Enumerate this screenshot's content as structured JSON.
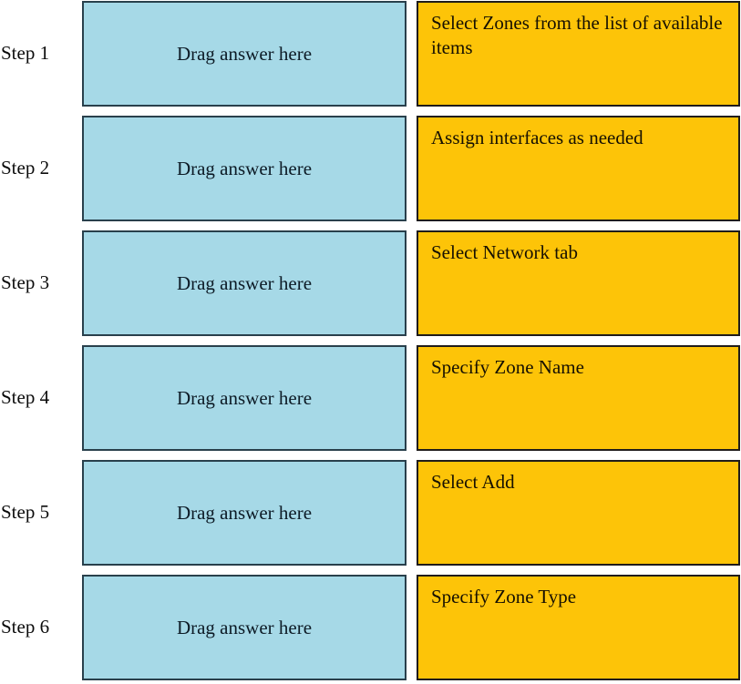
{
  "colors": {
    "drop_bg": "#a6d9e7",
    "drop_border": "#29404c",
    "answer_bg": "#fdc408",
    "answer_border": "#1f1c1b",
    "text": "#0b0b0b",
    "page_bg": "#ffffff"
  },
  "rows": [
    {
      "step": "Step 1",
      "drop_label": "Drag answer here",
      "answer": "Select Zones from the list of available items"
    },
    {
      "step": "Step 2",
      "drop_label": "Drag answer here",
      "answer": "Assign interfaces as needed"
    },
    {
      "step": "Step 3",
      "drop_label": "Drag answer here",
      "answer": "Select Network tab"
    },
    {
      "step": "Step 4",
      "drop_label": "Drag answer here",
      "answer": "Specify Zone Name"
    },
    {
      "step": "Step 5",
      "drop_label": "Drag answer here",
      "answer": "Select Add"
    },
    {
      "step": "Step 6",
      "drop_label": "Drag answer here",
      "answer": "Specify Zone Type"
    }
  ]
}
